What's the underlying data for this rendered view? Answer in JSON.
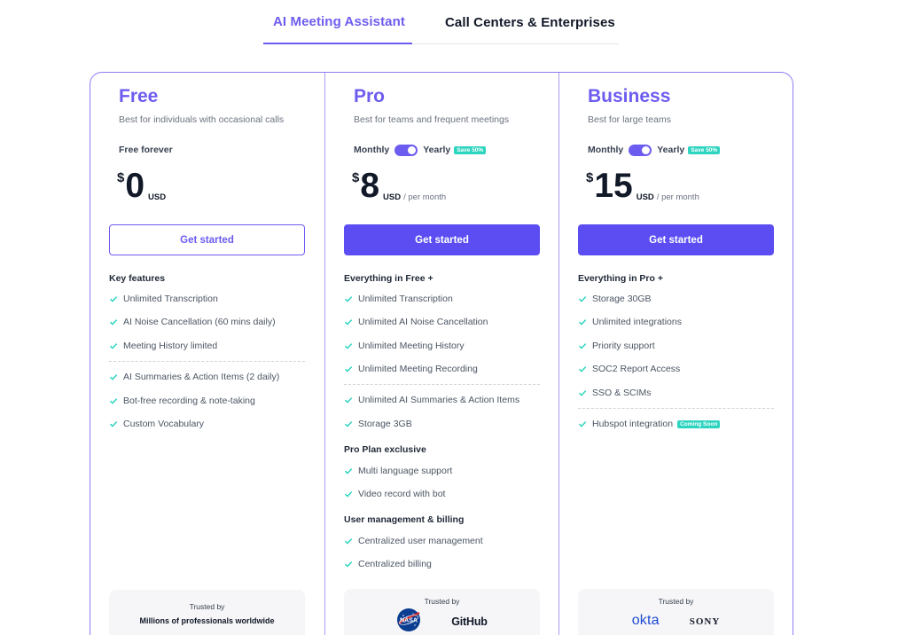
{
  "tabs": [
    {
      "label": "AI Meeting Assistant",
      "active": true
    },
    {
      "label": "Call Centers & Enterprises",
      "active": false
    }
  ],
  "colors": {
    "accent": "#6d5cf0",
    "button": "#5b4df2",
    "badge": "#2dd4bf",
    "check": "#2dd4bf"
  },
  "plans": {
    "free": {
      "name": "Free",
      "description": "Best for individuals with occasional calls",
      "billing_note": "Free forever",
      "currency_symbol": "$",
      "price": "0",
      "currency": "USD",
      "cta": "Get started",
      "sections": [
        {
          "title": "Key features",
          "items": [
            "Unlimited Transcription",
            "AI Noise Cancellation (60 mins daily)",
            "Meeting History limited"
          ]
        },
        {
          "title": "",
          "items": [
            "AI Summaries & Action Items (2 daily)",
            "Bot-free recording & note-taking",
            "Custom Vocabulary"
          ]
        }
      ],
      "trust": {
        "label": "Trusted by",
        "sub": "Millions of professionals worldwide"
      }
    },
    "pro": {
      "name": "Pro",
      "description": "Best for teams and frequent meetings",
      "billing": {
        "monthly": "Monthly",
        "yearly": "Yearly",
        "save": "Save 50%",
        "yearly_selected": true
      },
      "currency_symbol": "$",
      "price": "8",
      "currency": "USD",
      "period": "/ per month",
      "cta": "Get started",
      "sections": [
        {
          "title": "Everything in Free +",
          "items": [
            "Unlimited Transcription",
            "Unlimited AI Noise Cancellation",
            "Unlimited Meeting History",
            "Unlimited Meeting Recording"
          ]
        },
        {
          "title": "",
          "items": [
            "Unlimited AI Summaries & Action Items",
            "Storage 3GB"
          ]
        },
        {
          "title": "Pro Plan exclusive",
          "items": [
            "Multi language support",
            "Video record with bot"
          ]
        },
        {
          "title": "User management & billing",
          "items": [
            "Centralized user management",
            "Centralized billing"
          ]
        }
      ],
      "trust": {
        "label": "Trusted by",
        "logos": [
          "nasa-logo",
          "GitHub"
        ]
      }
    },
    "business": {
      "name": "Business",
      "description": "Best for large teams",
      "billing": {
        "monthly": "Monthly",
        "yearly": "Yearly",
        "save": "Save 50%",
        "yearly_selected": true
      },
      "currency_symbol": "$",
      "price": "15",
      "currency": "USD",
      "period": "/ per month",
      "cta": "Get started",
      "sections": [
        {
          "title": "Everything in Pro +",
          "items": [
            "Storage 30GB",
            "Unlimited integrations",
            "Priority support",
            "SOC2 Report Access",
            "SSO & SCIMs"
          ]
        },
        {
          "title": "",
          "items": [
            "Hubspot integration"
          ],
          "badge": "Coming Soon"
        }
      ],
      "trust": {
        "label": "Trusted by",
        "logos": [
          "okta",
          "SONY"
        ]
      }
    }
  }
}
